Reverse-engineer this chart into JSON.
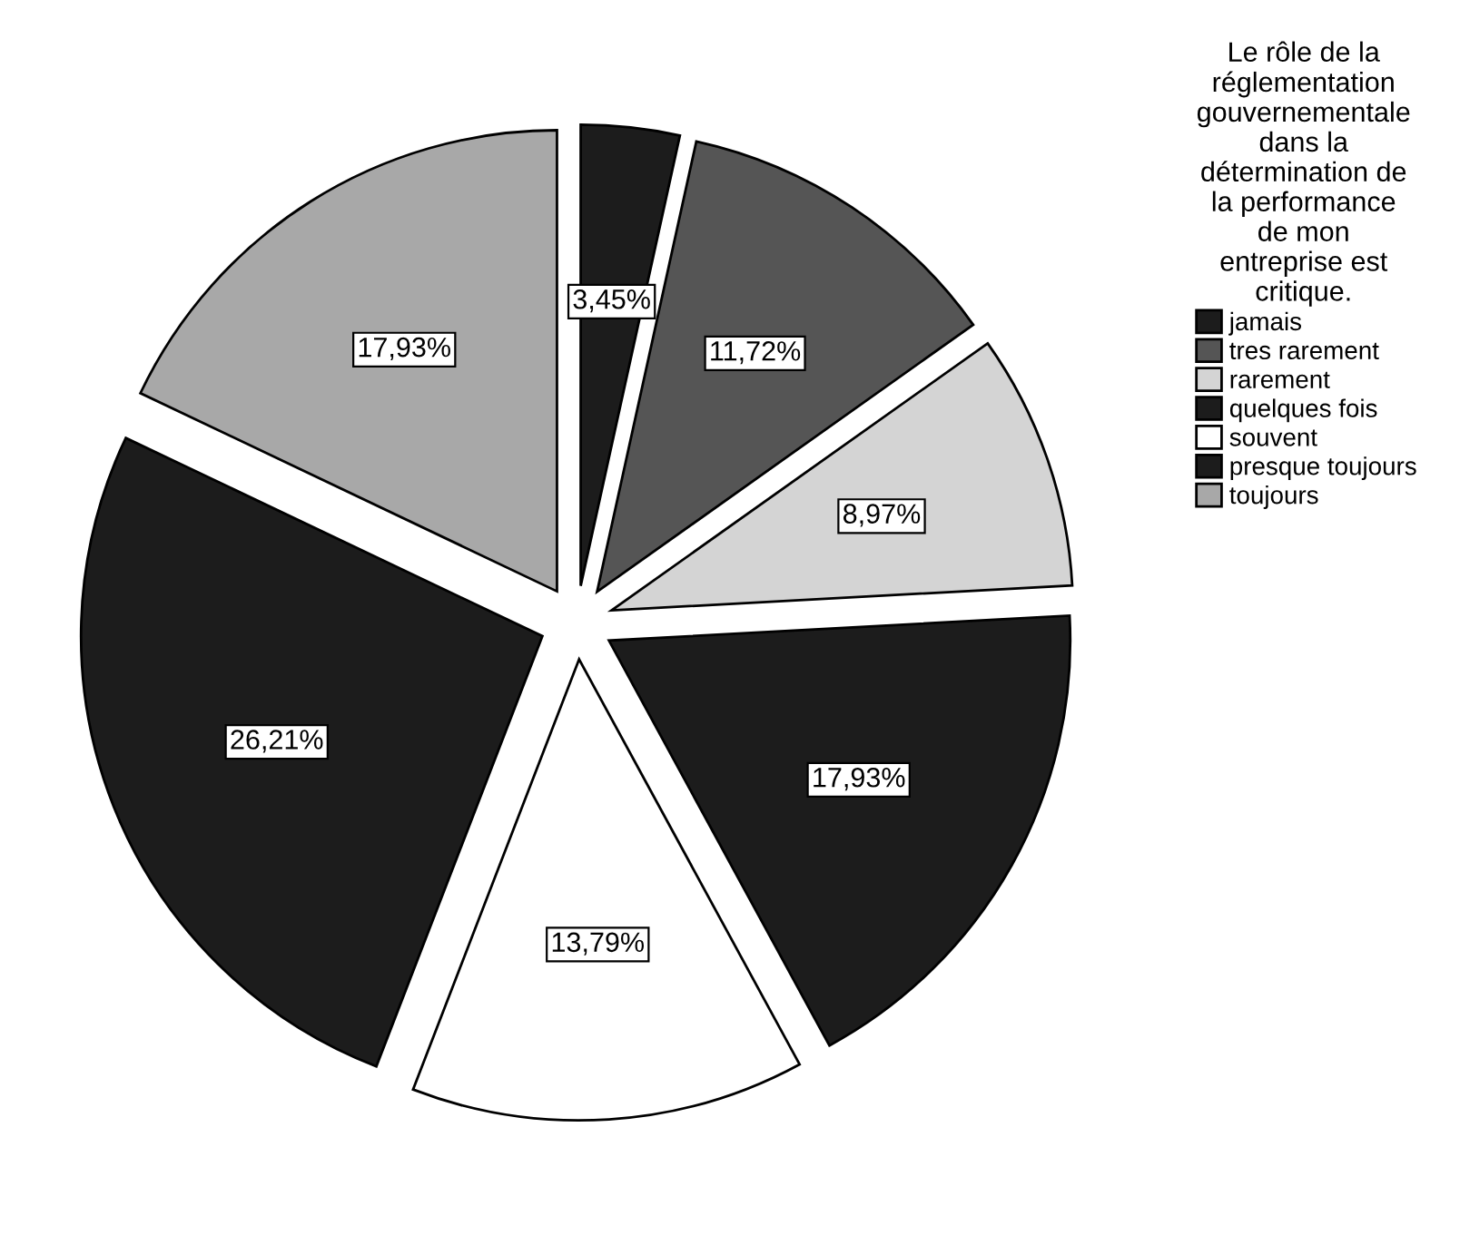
{
  "chart_data": {
    "type": "pie",
    "legend_title": "Le rôle de la\nréglementation\ngouvernementale\ndans la\ndétermination de\nla performance\nde mon\nentreprise est\ncritique.",
    "categories": [
      "jamais",
      "tres rarement",
      "rarement",
      "quelques fois",
      "souvent",
      "presque toujours",
      "toujours"
    ],
    "values": [
      3.45,
      11.72,
      8.97,
      17.93,
      13.79,
      26.21,
      17.93
    ],
    "value_labels": [
      "3,45%",
      "11,72%",
      "8,97%",
      "17,93%",
      "13,79%",
      "26,21%",
      "17,93%"
    ],
    "colors": [
      "#1c1c1c",
      "#555555",
      "#d4d4d4",
      "#1c1c1c",
      "#ffffff",
      "#1c1c1c",
      "#a8a8a8"
    ],
    "legend": "right"
  }
}
